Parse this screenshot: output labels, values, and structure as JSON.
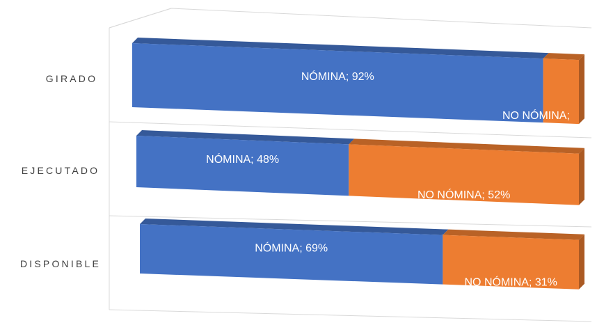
{
  "chart_data": {
    "type": "bar",
    "orientation": "horizontal",
    "stacking": "percent",
    "style": "3d",
    "categories": [
      "GIRADO",
      "EJECUTADO",
      "DISPONIBLE"
    ],
    "series": [
      {
        "name": "NÓMINA",
        "values": [
          92,
          48,
          69
        ],
        "color": "#4472C4",
        "labels": [
          "NÓMINA; 92%",
          "NÓMINA; 48%",
          "NÓMINA; 69%"
        ]
      },
      {
        "name": "NO NÓMINA",
        "values": [
          8,
          52,
          31
        ],
        "color": "#ED7D31",
        "labels": [
          "NO NÓMINA;",
          "NO NÓMINA; 52%",
          "NO NÓMINA; 31%"
        ]
      }
    ],
    "xlim": [
      0,
      100
    ],
    "grid": true,
    "legend": "none",
    "title": ""
  }
}
